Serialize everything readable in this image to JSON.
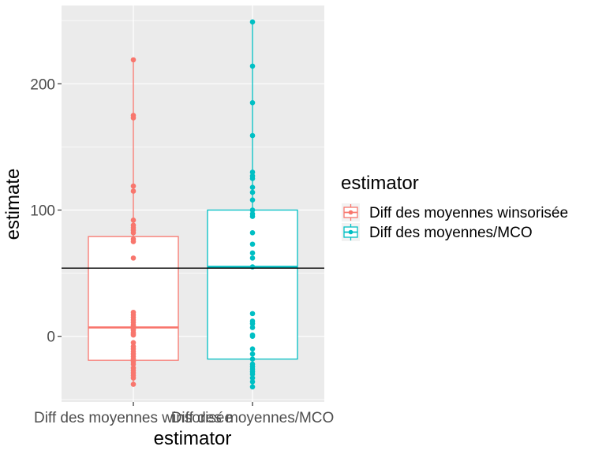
{
  "chart_data": {
    "type": "boxplot",
    "xlabel": "estimator",
    "ylabel": "estimate",
    "ylim": [
      -52,
      262
    ],
    "yticks": [
      0,
      100,
      200
    ],
    "grid": true,
    "legend": {
      "title": "estimator",
      "position": "right",
      "entries": [
        "Diff des moyennes winsorisée",
        "Diff des moyennes/MCO"
      ]
    },
    "reference_line": {
      "y": 54
    },
    "categories": [
      "Diff des moyennes winsorisée",
      "Diff des moyennes/MCO"
    ],
    "series": [
      {
        "name": "Diff des moyennes winsorisée",
        "color": "#F8766D",
        "box": {
          "min": -38,
          "q1": -19,
          "median": 7,
          "q3": 79,
          "max": 219
        },
        "points": [
          219,
          175,
          173,
          119,
          115,
          92,
          88,
          86,
          84,
          82,
          77,
          75,
          62,
          19,
          17,
          15,
          13,
          11,
          9,
          8,
          7,
          6,
          5,
          3,
          2,
          1,
          -5,
          -8,
          -10,
          -12,
          -14,
          -16,
          -18,
          -20,
          -22,
          -25,
          -27,
          -29,
          -31,
          -33,
          -38
        ]
      },
      {
        "name": "Diff des moyennes/MCO",
        "color": "#00BFC4",
        "box": {
          "min": -40,
          "q1": -18,
          "median": 55,
          "q3": 100,
          "max": 249
        },
        "points": [
          249,
          214,
          185,
          159,
          130,
          127,
          125,
          118,
          114,
          108,
          100,
          97,
          95,
          82,
          73,
          66,
          62,
          55,
          18,
          12,
          10,
          7,
          1,
          0,
          -10,
          -14,
          -18,
          -22,
          -24,
          -26,
          -28,
          -30,
          -33,
          -36,
          -40
        ]
      }
    ]
  }
}
